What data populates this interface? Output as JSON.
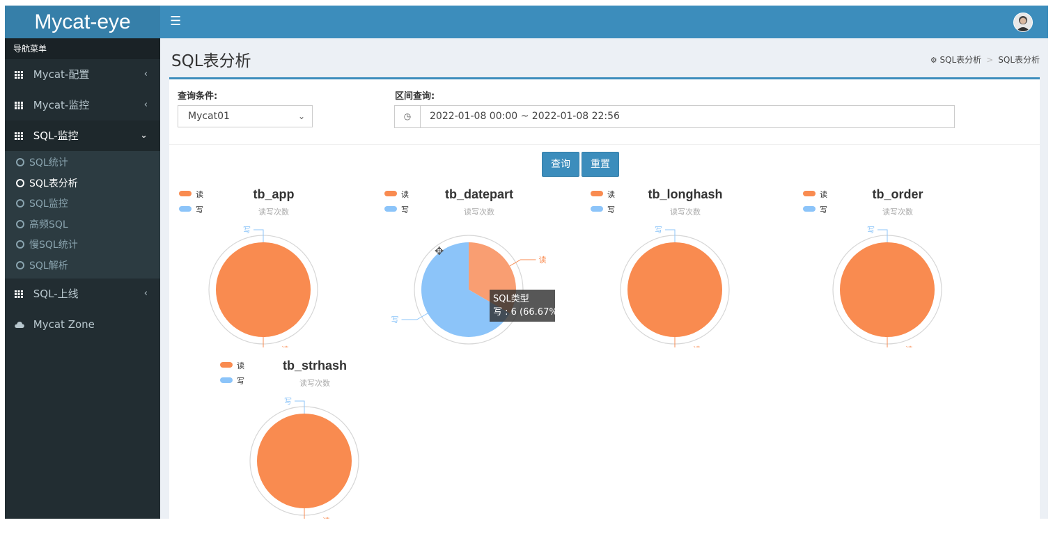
{
  "app": {
    "title": "Mycat-eye"
  },
  "header": {
    "menu_icon": "hamburger-icon",
    "avatar_icon": "user-avatar"
  },
  "sidebar": {
    "header": "导航菜单",
    "items": [
      {
        "label": "Mycat-配置",
        "icon": "grid-icon",
        "chevron": "‹"
      },
      {
        "label": "Mycat-监控",
        "icon": "grid-icon",
        "chevron": "‹"
      },
      {
        "label": "SQL-监控",
        "icon": "grid-icon",
        "chevron": "⌄"
      },
      {
        "label": "SQL-上线",
        "icon": "grid-icon",
        "chevron": "‹"
      },
      {
        "label": "Mycat Zone",
        "icon": "cloud-icon"
      }
    ],
    "submenu": [
      {
        "label": "SQL统计"
      },
      {
        "label": "SQL表分析"
      },
      {
        "label": "SQL监控"
      },
      {
        "label": "高频SQL"
      },
      {
        "label": "慢SQL统计"
      },
      {
        "label": "SQL解析"
      }
    ]
  },
  "page": {
    "title": "SQL表分析",
    "breadcrumb": [
      "SQL表分析",
      "SQL表分析"
    ]
  },
  "form": {
    "condition_label": "查询条件:",
    "condition_value": "Mycat01",
    "range_label": "区间查询:",
    "range_value": "2022-01-08 00:00 ~ 2022-01-08 22:56",
    "query_button": "查询",
    "reset_button": "重置"
  },
  "colors": {
    "read": "#f98b50",
    "write": "#8cc4f9",
    "accent": "#3c8dbc"
  },
  "chart_data": [
    {
      "type": "pie",
      "title": "tb_app",
      "subtitle": "读写次数",
      "legend": [
        "读",
        "写"
      ],
      "slices": [
        {
          "name": "读",
          "value": 1
        },
        {
          "name": "写",
          "value": 0
        }
      ]
    },
    {
      "type": "pie",
      "title": "tb_datepart",
      "subtitle": "读写次数",
      "legend": [
        "读",
        "写"
      ],
      "slices": [
        {
          "name": "读",
          "value": 3
        },
        {
          "name": "写",
          "value": 6
        }
      ],
      "tooltip": {
        "title": "SQL类型",
        "text": "写 : 6 (66.67%"
      }
    },
    {
      "type": "pie",
      "title": "tb_longhash",
      "subtitle": "读写次数",
      "legend": [
        "读",
        "写"
      ],
      "slices": [
        {
          "name": "读",
          "value": 1
        },
        {
          "name": "写",
          "value": 0
        }
      ]
    },
    {
      "type": "pie",
      "title": "tb_order",
      "subtitle": "读写次数",
      "legend": [
        "读",
        "写"
      ],
      "slices": [
        {
          "name": "读",
          "value": 1
        },
        {
          "name": "写",
          "value": 0
        }
      ]
    },
    {
      "type": "pie",
      "title": "tb_strhash",
      "subtitle": "读写次数",
      "legend": [
        "读",
        "写"
      ],
      "slices": [
        {
          "name": "读",
          "value": 1
        },
        {
          "name": "写",
          "value": 0
        }
      ]
    }
  ]
}
